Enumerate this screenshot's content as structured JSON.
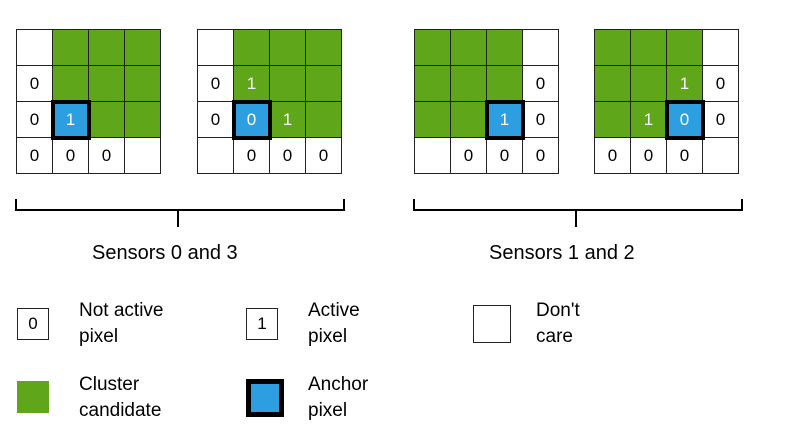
{
  "colors": {
    "cluster": "#5fa61a",
    "anchor": "#2d9fe0",
    "border": "#222222"
  },
  "grids": [
    {
      "cells": [
        {
          "t": "",
          "k": "w"
        },
        {
          "t": "",
          "k": "g"
        },
        {
          "t": "",
          "k": "g"
        },
        {
          "t": "",
          "k": "g"
        },
        {
          "t": "0",
          "k": "w"
        },
        {
          "t": "",
          "k": "g"
        },
        {
          "t": "",
          "k": "g"
        },
        {
          "t": "",
          "k": "g"
        },
        {
          "t": "0",
          "k": "w"
        },
        {
          "t": "1",
          "k": "a"
        },
        {
          "t": "",
          "k": "g"
        },
        {
          "t": "",
          "k": "g"
        },
        {
          "t": "0",
          "k": "w"
        },
        {
          "t": "0",
          "k": "w"
        },
        {
          "t": "0",
          "k": "w"
        },
        {
          "t": "",
          "k": "w"
        }
      ]
    },
    {
      "cells": [
        {
          "t": "",
          "k": "w"
        },
        {
          "t": "",
          "k": "g"
        },
        {
          "t": "",
          "k": "g"
        },
        {
          "t": "",
          "k": "g"
        },
        {
          "t": "0",
          "k": "w"
        },
        {
          "t": "1",
          "k": "g"
        },
        {
          "t": "",
          "k": "g"
        },
        {
          "t": "",
          "k": "g"
        },
        {
          "t": "0",
          "k": "w"
        },
        {
          "t": "0",
          "k": "a"
        },
        {
          "t": "1",
          "k": "g"
        },
        {
          "t": "",
          "k": "g"
        },
        {
          "t": "",
          "k": "w"
        },
        {
          "t": "0",
          "k": "w"
        },
        {
          "t": "0",
          "k": "w"
        },
        {
          "t": "0",
          "k": "w"
        }
      ]
    },
    {
      "cells": [
        {
          "t": "",
          "k": "g"
        },
        {
          "t": "",
          "k": "g"
        },
        {
          "t": "",
          "k": "g"
        },
        {
          "t": "",
          "k": "w"
        },
        {
          "t": "",
          "k": "g"
        },
        {
          "t": "",
          "k": "g"
        },
        {
          "t": "",
          "k": "g"
        },
        {
          "t": "0",
          "k": "w"
        },
        {
          "t": "",
          "k": "g"
        },
        {
          "t": "",
          "k": "g"
        },
        {
          "t": "1",
          "k": "a"
        },
        {
          "t": "0",
          "k": "w"
        },
        {
          "t": "",
          "k": "w"
        },
        {
          "t": "0",
          "k": "w"
        },
        {
          "t": "0",
          "k": "w"
        },
        {
          "t": "0",
          "k": "w"
        }
      ]
    },
    {
      "cells": [
        {
          "t": "",
          "k": "g"
        },
        {
          "t": "",
          "k": "g"
        },
        {
          "t": "",
          "k": "g"
        },
        {
          "t": "",
          "k": "w"
        },
        {
          "t": "",
          "k": "g"
        },
        {
          "t": "",
          "k": "g"
        },
        {
          "t": "1",
          "k": "g"
        },
        {
          "t": "0",
          "k": "w"
        },
        {
          "t": "",
          "k": "g"
        },
        {
          "t": "1",
          "k": "g"
        },
        {
          "t": "0",
          "k": "a"
        },
        {
          "t": "0",
          "k": "w"
        },
        {
          "t": "0",
          "k": "w"
        },
        {
          "t": "0",
          "k": "w"
        },
        {
          "t": "0",
          "k": "w"
        },
        {
          "t": "",
          "k": "w"
        }
      ]
    }
  ],
  "groups": {
    "left_label": "Sensors 0 and 3",
    "right_label": "Sensors 1 and 2"
  },
  "legend": {
    "not_active_symbol": "0",
    "not_active_label": "Not active pixel",
    "active_symbol": "1",
    "active_label": "Active pixel",
    "dont_care_label": "Don't care",
    "cluster_label": "Cluster candidate",
    "anchor_label": "Anchor pixel"
  }
}
